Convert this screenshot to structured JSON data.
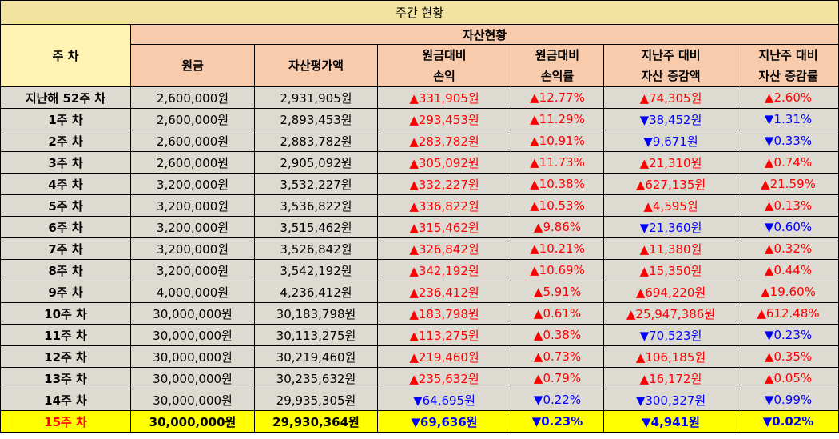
{
  "title": "주간 현황",
  "header": {
    "week_label": "주 차",
    "group_label": "자산현황",
    "columns": [
      [
        "원금"
      ],
      [
        "자산평가액"
      ],
      [
        "원금대비",
        "손익"
      ],
      [
        "원금대비",
        "손익률"
      ],
      [
        "지난주 대비",
        "자산 증감액"
      ],
      [
        "지난주 대비",
        "자산 증감률"
      ]
    ]
  },
  "rows": [
    {
      "week": "지난해 52주 차",
      "principal": "2,600,000원",
      "asset": "2,931,905원",
      "pl": "▲331,905원",
      "pl_dir": "up",
      "plr": "▲12.77%",
      "plr_dir": "up",
      "chg": "▲74,305원",
      "chg_dir": "up",
      "chgr": "▲2.60%",
      "chgr_dir": "up"
    },
    {
      "week": "1주 차",
      "principal": "2,600,000원",
      "asset": "2,893,453원",
      "pl": "▲293,453원",
      "pl_dir": "up",
      "plr": "▲11.29%",
      "plr_dir": "up",
      "chg": "▼38,452원",
      "chg_dir": "down",
      "chgr": "▼1.31%",
      "chgr_dir": "down"
    },
    {
      "week": "2주 차",
      "principal": "2,600,000원",
      "asset": "2,883,782원",
      "pl": "▲283,782원",
      "pl_dir": "up",
      "plr": "▲10.91%",
      "plr_dir": "up",
      "chg": "▼9,671원",
      "chg_dir": "down",
      "chgr": "▼0.33%",
      "chgr_dir": "down"
    },
    {
      "week": "3주 차",
      "principal": "2,600,000원",
      "asset": "2,905,092원",
      "pl": "▲305,092원",
      "pl_dir": "up",
      "plr": "▲11.73%",
      "plr_dir": "up",
      "chg": "▲21,310원",
      "chg_dir": "up",
      "chgr": "▲0.74%",
      "chgr_dir": "up"
    },
    {
      "week": "4주 차",
      "principal": "3,200,000원",
      "asset": "3,532,227원",
      "pl": "▲332,227원",
      "pl_dir": "up",
      "plr": "▲10.38%",
      "plr_dir": "up",
      "chg": "▲627,135원",
      "chg_dir": "up",
      "chgr": "▲21.59%",
      "chgr_dir": "up"
    },
    {
      "week": "5주 차",
      "principal": "3,200,000원",
      "asset": "3,536,822원",
      "pl": "▲336,822원",
      "pl_dir": "up",
      "plr": "▲10.53%",
      "plr_dir": "up",
      "chg": "▲4,595원",
      "chg_dir": "up",
      "chgr": "▲0.13%",
      "chgr_dir": "up"
    },
    {
      "week": "6주 차",
      "principal": "3,200,000원",
      "asset": "3,515,462원",
      "pl": "▲315,462원",
      "pl_dir": "up",
      "plr": "▲9.86%",
      "plr_dir": "up",
      "chg": "▼21,360원",
      "chg_dir": "down",
      "chgr": "▼0.60%",
      "chgr_dir": "down"
    },
    {
      "week": "7주 차",
      "principal": "3,200,000원",
      "asset": "3,526,842원",
      "pl": "▲326,842원",
      "pl_dir": "up",
      "plr": "▲10.21%",
      "plr_dir": "up",
      "chg": "▲11,380원",
      "chg_dir": "up",
      "chgr": "▲0.32%",
      "chgr_dir": "up"
    },
    {
      "week": "8주 차",
      "principal": "3,200,000원",
      "asset": "3,542,192원",
      "pl": "▲342,192원",
      "pl_dir": "up",
      "plr": "▲10.69%",
      "plr_dir": "up",
      "chg": "▲15,350원",
      "chg_dir": "up",
      "chgr": "▲0.44%",
      "chgr_dir": "up"
    },
    {
      "week": "9주 차",
      "principal": "4,000,000원",
      "asset": "4,236,412원",
      "pl": "▲236,412원",
      "pl_dir": "up",
      "plr": "▲5.91%",
      "plr_dir": "up",
      "chg": "▲694,220원",
      "chg_dir": "up",
      "chgr": "▲19.60%",
      "chgr_dir": "up"
    },
    {
      "week": "10주 차",
      "principal": "30,000,000원",
      "asset": "30,183,798원",
      "pl": "▲183,798원",
      "pl_dir": "up",
      "plr": "▲0.61%",
      "plr_dir": "up",
      "chg": "▲25,947,386원",
      "chg_dir": "up",
      "chgr": "▲612.48%",
      "chgr_dir": "up"
    },
    {
      "week": "11주 차",
      "principal": "30,000,000원",
      "asset": "30,113,275원",
      "pl": "▲113,275원",
      "pl_dir": "up",
      "plr": "▲0.38%",
      "plr_dir": "up",
      "chg": "▼70,523원",
      "chg_dir": "down",
      "chgr": "▼0.23%",
      "chgr_dir": "down"
    },
    {
      "week": "12주 차",
      "principal": "30,000,000원",
      "asset": "30,219,460원",
      "pl": "▲219,460원",
      "pl_dir": "up",
      "plr": "▲0.73%",
      "plr_dir": "up",
      "chg": "▲106,185원",
      "chg_dir": "up",
      "chgr": "▲0.35%",
      "chgr_dir": "up"
    },
    {
      "week": "13주 차",
      "principal": "30,000,000원",
      "asset": "30,235,632원",
      "pl": "▲235,632원",
      "pl_dir": "up",
      "plr": "▲0.79%",
      "plr_dir": "up",
      "chg": "▲16,172원",
      "chg_dir": "up",
      "chgr": "▲0.05%",
      "chgr_dir": "up"
    },
    {
      "week": "14주 차",
      "principal": "30,000,000원",
      "asset": "29,935,305원",
      "pl": "▼64,695원",
      "pl_dir": "down",
      "plr": "▼0.22%",
      "plr_dir": "down",
      "chg": "▼300,327원",
      "chg_dir": "down",
      "chgr": "▼0.99%",
      "chgr_dir": "down"
    },
    {
      "week": "15주 차",
      "principal": "30,000,000원",
      "asset": "29,930,364원",
      "pl": "▼69,636원",
      "pl_dir": "down",
      "plr": "▼0.23%",
      "plr_dir": "down",
      "chg": "▼4,941원",
      "chg_dir": "down",
      "chgr": "▼0.02%",
      "chgr_dir": "down",
      "highlight": true
    }
  ],
  "colors": {
    "title_bg": "#f2e4a0",
    "header_bg": "#f8cbad",
    "week_header_bg": "#fff2b3",
    "row_bg": "#dddad2",
    "highlight_bg": "#ffff00",
    "up": "#ff0000",
    "down": "#0000ff"
  }
}
